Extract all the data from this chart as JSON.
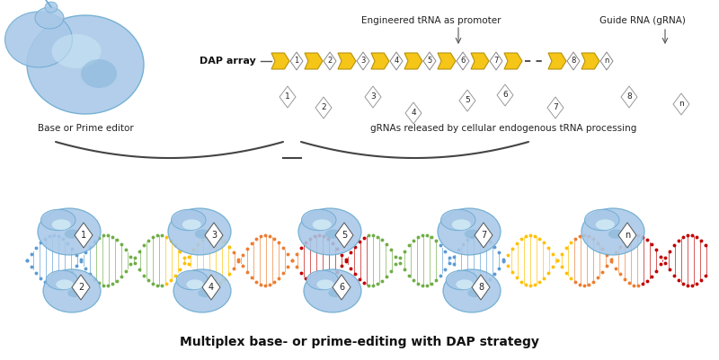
{
  "background_color": "#ffffff",
  "fig_width": 8.0,
  "fig_height": 4.01,
  "dpi": 100,
  "top_label": "Engineered tRNA as promoter",
  "right_label": "Guide RNA (gRNA)",
  "dap_label": "DAP array",
  "grna_label": "gRNAs released by cellular endogenous tRNA processing",
  "editor_label": "Base or Prime editor",
  "bottom_title": "Multiplex base- or prime-editing with DAP strategy",
  "arrow_fill": "#F5C518",
  "arrow_edge": "#B8930A",
  "diamond_fill": "#ffffff",
  "diamond_edge": "#888888",
  "blob_main": "#A8C8E8",
  "blob_edge": "#6AAAD0",
  "blob_highlight": "#D0E8F8",
  "dna_segment_colors": [
    "#5B9BD5",
    "#70AD47",
    "#FFC000",
    "#ED7D31",
    "#C00000",
    "#70AD47",
    "#5B9BD5",
    "#FFC000",
    "#ED7D31",
    "#C00000"
  ],
  "numbers_array": [
    "1",
    "2",
    "3",
    "4",
    "5",
    "6",
    "7",
    "8",
    "n"
  ],
  "rung_color": "#D4A84B"
}
